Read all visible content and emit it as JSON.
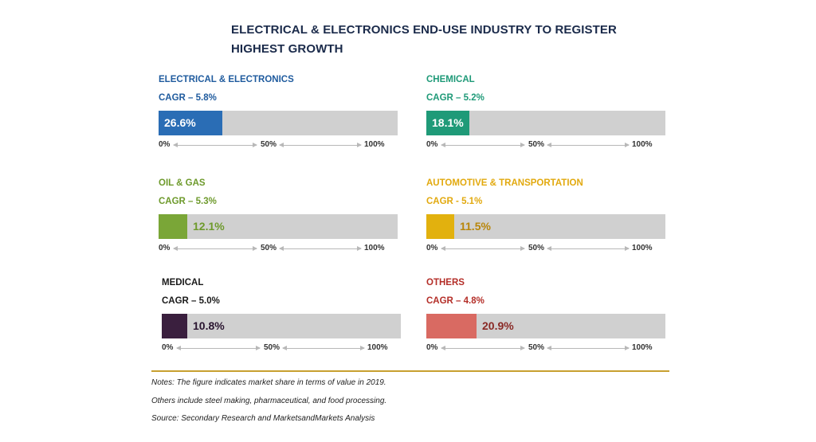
{
  "title": "ELECTRICAL & ELECTRONICS END-USE INDUSTRY TO REGISTER HIGHEST GROWTH",
  "axis_ticks": [
    "0%",
    "50%",
    "100%"
  ],
  "chart_data": {
    "type": "bar",
    "title": "ELECTRICAL & ELECTRONICS END-USE INDUSTRY TO REGISTER HIGHEST GROWTH",
    "xlim": [
      0,
      100
    ],
    "unit": "%",
    "panels": [
      {
        "name": "ELECTRICAL & ELECTRONICS",
        "cagr_label": "CAGR – 5.8%",
        "value": 26.6,
        "value_label": "26.6%",
        "color": "#2a6db5",
        "name_color": "#1f5b9e",
        "value_color": "#ffffff",
        "label_inside": true
      },
      {
        "name": "CHEMICAL",
        "cagr_label": "CAGR – 5.2%",
        "value": 18.1,
        "value_label": "18.1%",
        "color": "#1f9a78",
        "name_color": "#1f9a78",
        "value_color": "#ffffff",
        "label_inside": true
      },
      {
        "name": "OIL & GAS",
        "cagr_label": "CAGR – 5.3%",
        "value": 12.1,
        "value_label": "12.1%",
        "color": "#7aa637",
        "name_color": "#6e9a2c",
        "value_color": "#6e9a2c",
        "label_inside": false
      },
      {
        "name": "AUTOMOTIVE & TRANSPORTATION",
        "cagr_label": "CAGR - 5.1%",
        "value": 11.5,
        "value_label": "11.5%",
        "color": "#e2b10e",
        "name_color": "#e2a90e",
        "value_color": "#b8860b",
        "label_inside": false
      },
      {
        "name": "MEDICAL",
        "cagr_label": "CAGR – 5.0%",
        "value": 10.8,
        "value_label": "10.8%",
        "color": "#3a1f3e",
        "name_color": "#1a1a1a",
        "value_color": "#2a1530",
        "label_inside": false
      },
      {
        "name": "OTHERS",
        "cagr_label": "CAGR – 4.8%",
        "value": 20.9,
        "value_label": "20.9%",
        "color": "#d96a62",
        "name_color": "#b42e28",
        "value_color": "#8a2a26",
        "label_inside": false
      }
    ]
  },
  "notes": [
    "Notes: The figure indicates market share in terms of value in 2019.",
    "Others include steel making, pharmaceutical, and food processing.",
    "Source: Secondary Research and MarketsandMarkets Analysis"
  ]
}
